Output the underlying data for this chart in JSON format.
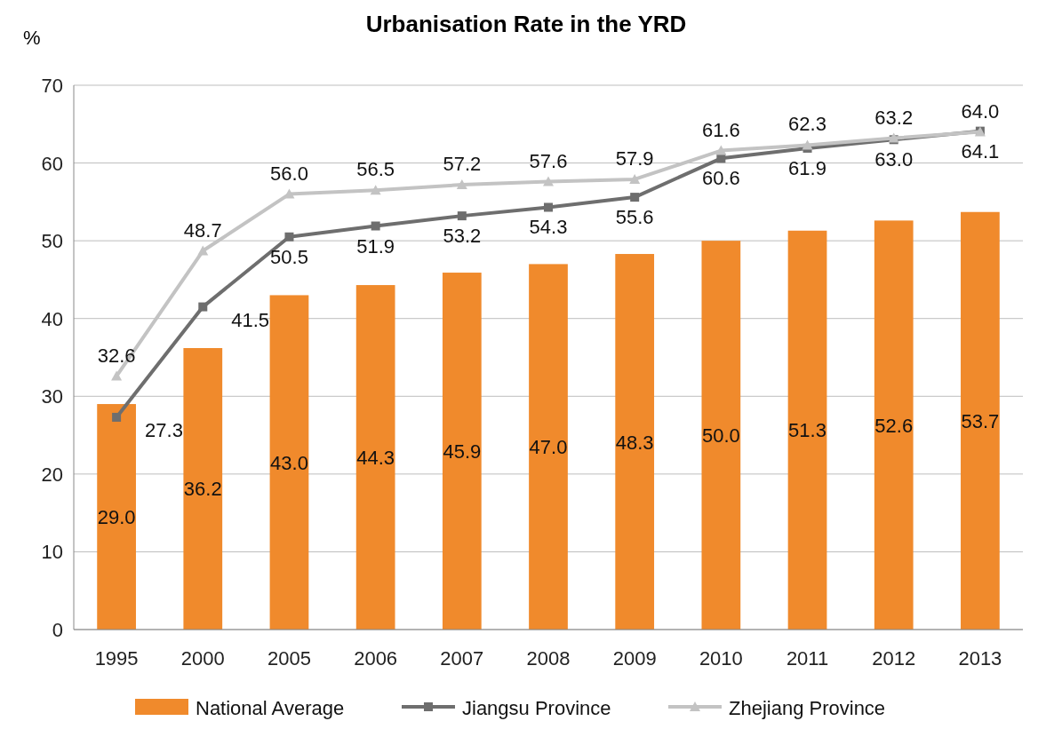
{
  "chart_data": {
    "type": "bar",
    "title": "Urbanisation Rate in the YRD",
    "ylabel": "%",
    "categories": [
      "1995",
      "2000",
      "2005",
      "2006",
      "2007",
      "2008",
      "2009",
      "2010",
      "2011",
      "2012",
      "2013"
    ],
    "series": [
      {
        "name": "National Average",
        "color": "#f08a2c",
        "values": [
          29.0,
          36.2,
          43.0,
          44.3,
          45.9,
          47.0,
          48.3,
          50.0,
          51.3,
          52.6,
          53.7
        ],
        "value_labels": [
          "29.0",
          "36.2",
          "43.0",
          "44.3",
          "45.9",
          "47.0",
          "48.3",
          "50.0",
          "51.3",
          "52.6",
          "53.7"
        ]
      },
      {
        "name": "Jiangsu Province",
        "type": "line",
        "color": "#6e6e6e",
        "marker": "square",
        "values": [
          27.3,
          41.5,
          50.5,
          51.9,
          53.2,
          54.3,
          55.6,
          60.6,
          61.9,
          63.0,
          64.1
        ],
        "value_labels": [
          "27.3",
          "41.5",
          "50.5",
          "51.9",
          "53.2",
          "54.3",
          "55.6",
          "60.6",
          "61.9",
          "63.0",
          "64.1"
        ]
      },
      {
        "name": "Zhejiang Province",
        "type": "line",
        "color": "#c3c3c3",
        "marker": "triangle",
        "values": [
          32.6,
          48.7,
          56.0,
          56.5,
          57.2,
          57.6,
          57.9,
          61.6,
          62.3,
          63.2,
          64.0
        ],
        "value_labels": [
          "32.6",
          "48.7",
          "56.0",
          "56.5",
          "57.2",
          "57.6",
          "57.9",
          "61.6",
          "62.3",
          "63.2",
          "64.0"
        ]
      }
    ],
    "ylim": [
      0,
      70
    ],
    "yticks": [
      0,
      10,
      20,
      30,
      40,
      50,
      60,
      70
    ],
    "grid": "y",
    "legend": "bottom"
  }
}
